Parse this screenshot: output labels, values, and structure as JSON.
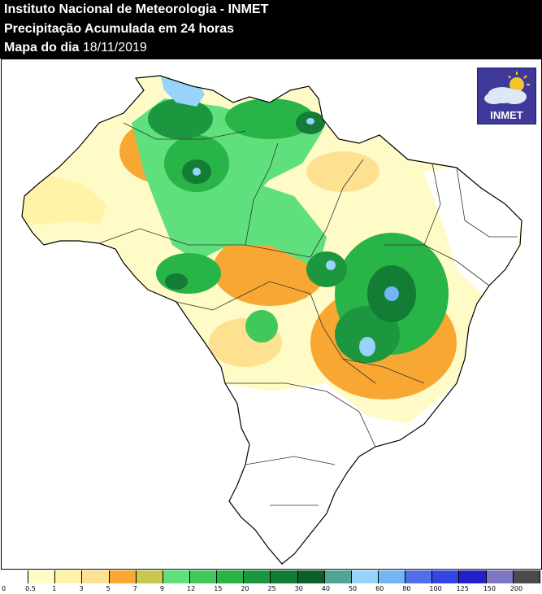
{
  "header": {
    "line1": "Instituto Nacional de Meteorologia - INMET",
    "line2": "Precipitação Acumulada em 24 horas",
    "line3_prefix": "Mapa do dia ",
    "date": "18/11/2019"
  },
  "logo": {
    "text": "INMET"
  },
  "legend": {
    "labels": [
      "0",
      "0.5",
      "1",
      "3",
      "5",
      "7",
      "9",
      "12",
      "15",
      "20",
      "25",
      "30",
      "40",
      "50",
      "60",
      "80",
      "100",
      "125",
      "150",
      "200"
    ],
    "colors": [
      "#ffffff",
      "#fffbc7",
      "#fff3a8",
      "#fee190",
      "#f9a733",
      "#c9c84e",
      "#5fe07c",
      "#40c85c",
      "#28b447",
      "#1d9640",
      "#137c35",
      "#0c5f2b",
      "#4fa397",
      "#97d3fb",
      "#73b6f4",
      "#4f6ee8",
      "#3345e2",
      "#2320c8",
      "#7d77c2",
      "#4b4b4b"
    ]
  },
  "map": {
    "country": "Brasil"
  }
}
